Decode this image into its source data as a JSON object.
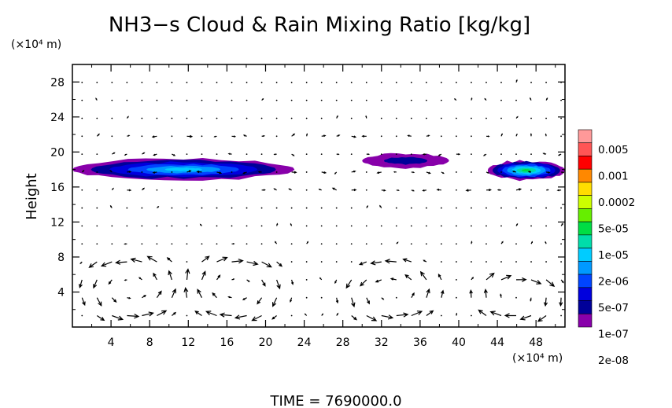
{
  "chart_data": {
    "type": "heatmap",
    "title": "NH3−s Cloud & Rain Mixing Ratio [kg/kg]",
    "ylabel": "Height",
    "y_unit_label": "(×10⁴ m)",
    "x_unit_label": "(×10⁴ m)",
    "xlim": [
      0,
      51
    ],
    "ylim": [
      0,
      30
    ],
    "x_ticks": [
      "4",
      "8",
      "12",
      "16",
      "20",
      "24",
      "28",
      "32",
      "36",
      "40",
      "44",
      "48"
    ],
    "y_ticks": [
      "4",
      "8",
      "12",
      "16",
      "20",
      "24",
      "28"
    ],
    "colorbar": {
      "labels": [
        "0.005",
        "0.001",
        "0.0002",
        "5e-05",
        "1e-05",
        "2e-06",
        "5e-07",
        "1e-07",
        "2e-08"
      ],
      "colors": [
        "#ff9999",
        "#ff5555",
        "#ff0000",
        "#ff8800",
        "#ffdd00",
        "#ccff00",
        "#66ee00",
        "#00dd44",
        "#00ddaa",
        "#00ccff",
        "#0099ff",
        "#0044ff",
        "#0000dd",
        "#000099",
        "#8800aa"
      ]
    },
    "cloud_layers": [
      {
        "x_start": 0,
        "x_end": 23,
        "y_bottom": 16.8,
        "y_top": 19.2,
        "peak": "1e-05"
      },
      {
        "x_start": 30,
        "x_end": 39,
        "y_bottom": 18.2,
        "y_top": 19.8,
        "peak": "1e-07"
      },
      {
        "x_start": 43,
        "x_end": 51,
        "y_bottom": 16.8,
        "y_top": 19.0,
        "peak": "5e-05"
      }
    ],
    "circulation_cells": [
      {
        "x_center": 6,
        "y_center": 4.5,
        "x_radius": 5,
        "y_radius": 4
      },
      {
        "x_center": 17,
        "y_center": 4.5,
        "x_radius": 5,
        "y_radius": 4
      },
      {
        "x_center": 33,
        "y_center": 4,
        "x_radius": 5,
        "y_radius": 3.5
      },
      {
        "x_center": 46,
        "y_center": 3.5,
        "x_radius": 4.5,
        "y_radius": 3
      }
    ],
    "grid": false
  },
  "footer": {
    "time_label": "TIME = 7690000.0"
  }
}
